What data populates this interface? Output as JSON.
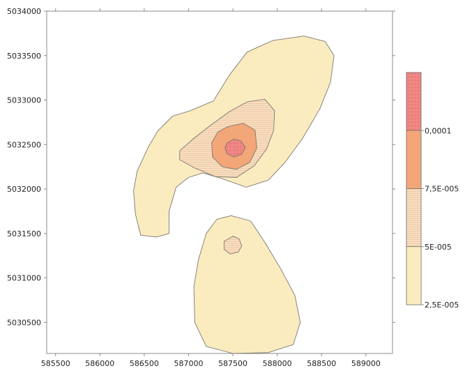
{
  "chart_data": {
    "type": "contour",
    "title": "",
    "xlabel": "",
    "ylabel": "",
    "xlim": [
      585400,
      589300
    ],
    "ylim": [
      5030150,
      5034000
    ],
    "x_ticks": [
      585500,
      586000,
      586500,
      587000,
      587500,
      588000,
      588500,
      589000
    ],
    "y_ticks": [
      5030500,
      5031000,
      5031500,
      5032000,
      5032500,
      5033000,
      5033500,
      5034000
    ],
    "x_tick_labels": [
      "585500",
      "586000",
      "586500",
      "587000",
      "587500",
      "588000",
      "588500",
      "589000"
    ],
    "y_tick_labels": [
      "5030500",
      "5031000",
      "5031500",
      "5032000",
      "5032500",
      "5033000",
      "5033500",
      "5034000"
    ],
    "grid": false,
    "legend_position": "right",
    "legend": [
      {
        "label": "2,5E-005",
        "color": "#fbecc0",
        "pattern": "solid"
      },
      {
        "label": "5E-005",
        "color": "#f8dfbe",
        "pattern": "horizontal-lines"
      },
      {
        "label": "7,5E-005",
        "color": "#f3a678",
        "pattern": "solid"
      },
      {
        "label": "0,0001",
        "color": "#f08a86",
        "pattern": "grid"
      }
    ],
    "contour_regions": [
      {
        "level": "2,5E-005",
        "shape": "north-island",
        "points": [
          [
            587020,
            5032880
          ],
          [
            587280,
            5032990
          ],
          [
            587460,
            5033280
          ],
          [
            587660,
            5033540
          ],
          [
            587950,
            5033670
          ],
          [
            588300,
            5033720
          ],
          [
            588540,
            5033660
          ],
          [
            588640,
            5033500
          ],
          [
            588600,
            5033200
          ],
          [
            588480,
            5032900
          ],
          [
            588280,
            5032560
          ],
          [
            588080,
            5032290
          ],
          [
            587900,
            5032100
          ],
          [
            587650,
            5032020
          ],
          [
            587370,
            5032120
          ],
          [
            587160,
            5032180
          ],
          [
            587000,
            5032130
          ],
          [
            586860,
            5032020
          ],
          [
            586780,
            5031750
          ],
          [
            586780,
            5031500
          ],
          [
            586640,
            5031460
          ],
          [
            586460,
            5031480
          ],
          [
            586400,
            5031720
          ],
          [
            586380,
            5031980
          ],
          [
            586420,
            5032200
          ],
          [
            586540,
            5032460
          ],
          [
            586650,
            5032650
          ],
          [
            586820,
            5032820
          ]
        ]
      },
      {
        "level": "2,5E-005",
        "shape": "south-island",
        "points": [
          [
            587480,
            5031700
          ],
          [
            587700,
            5031640
          ],
          [
            587860,
            5031400
          ],
          [
            588040,
            5031100
          ],
          [
            588200,
            5030800
          ],
          [
            588260,
            5030500
          ],
          [
            588180,
            5030250
          ],
          [
            587900,
            5030160
          ],
          [
            587500,
            5030150
          ],
          [
            587200,
            5030230
          ],
          [
            587070,
            5030500
          ],
          [
            587060,
            5030900
          ],
          [
            587110,
            5031200
          ],
          [
            587200,
            5031500
          ],
          [
            587320,
            5031660
          ]
        ]
      },
      {
        "level": "5E-005",
        "shape": "north-ring",
        "points": [
          [
            586900,
            5032430
          ],
          [
            587060,
            5032570
          ],
          [
            587240,
            5032710
          ],
          [
            587460,
            5032870
          ],
          [
            587660,
            5032980
          ],
          [
            587860,
            5033010
          ],
          [
            587970,
            5032880
          ],
          [
            587960,
            5032660
          ],
          [
            587880,
            5032450
          ],
          [
            587740,
            5032260
          ],
          [
            587540,
            5032130
          ],
          [
            587300,
            5032140
          ],
          [
            587060,
            5032240
          ],
          [
            586900,
            5032330
          ]
        ]
      },
      {
        "level": "5E-005",
        "shape": "south-spot",
        "points": [
          [
            587500,
            5031470
          ],
          [
            587570,
            5031440
          ],
          [
            587600,
            5031360
          ],
          [
            587560,
            5031290
          ],
          [
            587470,
            5031270
          ],
          [
            587400,
            5031320
          ],
          [
            587400,
            5031410
          ]
        ]
      },
      {
        "level": "7,5E-005",
        "shape": "north-core",
        "points": [
          [
            587330,
            5032640
          ],
          [
            587440,
            5032700
          ],
          [
            587620,
            5032740
          ],
          [
            587750,
            5032660
          ],
          [
            587770,
            5032460
          ],
          [
            587690,
            5032300
          ],
          [
            587540,
            5032220
          ],
          [
            587380,
            5032250
          ],
          [
            587270,
            5032360
          ],
          [
            587260,
            5032520
          ]
        ]
      },
      {
        "level": "0,0001",
        "shape": "north-peak",
        "points": [
          [
            587440,
            5032520
          ],
          [
            587510,
            5032560
          ],
          [
            587590,
            5032540
          ],
          [
            587640,
            5032470
          ],
          [
            587600,
            5032390
          ],
          [
            587510,
            5032360
          ],
          [
            587430,
            5032400
          ],
          [
            587410,
            5032470
          ]
        ]
      }
    ]
  }
}
